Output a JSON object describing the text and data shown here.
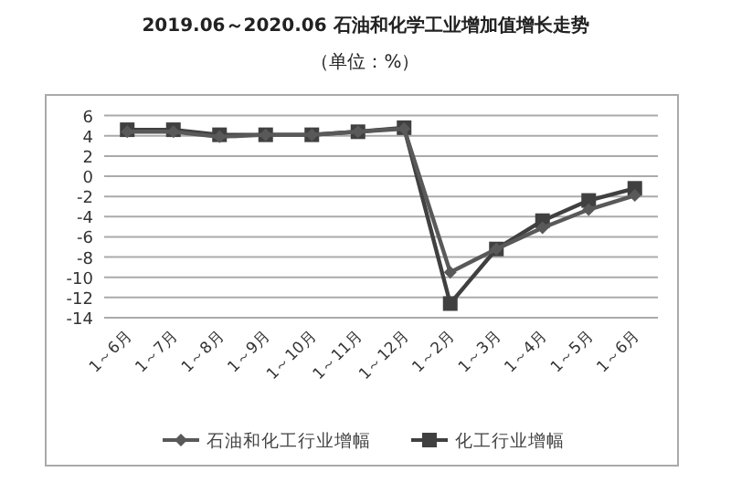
{
  "chart_data": {
    "type": "line",
    "title": "2019.06～2020.06 石油和化学工业增加值增长走势",
    "subtitle": "（单位：%）",
    "categories": [
      "1～6月",
      "1～7月",
      "1～8月",
      "1～9月",
      "1～10月",
      "1～11月",
      "1～12月",
      "1～2月",
      "1～3月",
      "1～4月",
      "1～5月",
      "1～6月"
    ],
    "series": [
      {
        "name": "石油和化工行业增幅",
        "color": "#595959",
        "marker": "diamond",
        "values": [
          4.4,
          4.4,
          3.9,
          4.1,
          4.1,
          4.4,
          4.7,
          -9.5,
          -7.2,
          -5.1,
          -3.3,
          -1.9
        ]
      },
      {
        "name": "化工行业增幅",
        "color": "#404040",
        "marker": "square",
        "values": [
          4.6,
          4.6,
          4.1,
          4.1,
          4.1,
          4.4,
          4.8,
          -12.6,
          -7.2,
          -4.4,
          -2.4,
          -1.2
        ]
      }
    ],
    "ylim": [
      -14,
      6
    ],
    "yticks": [
      -14,
      -12,
      -10,
      -8,
      -6,
      -4,
      -2,
      0,
      2,
      4,
      6
    ],
    "grid": "y",
    "legend": "bottom",
    "line_style": "solid"
  }
}
